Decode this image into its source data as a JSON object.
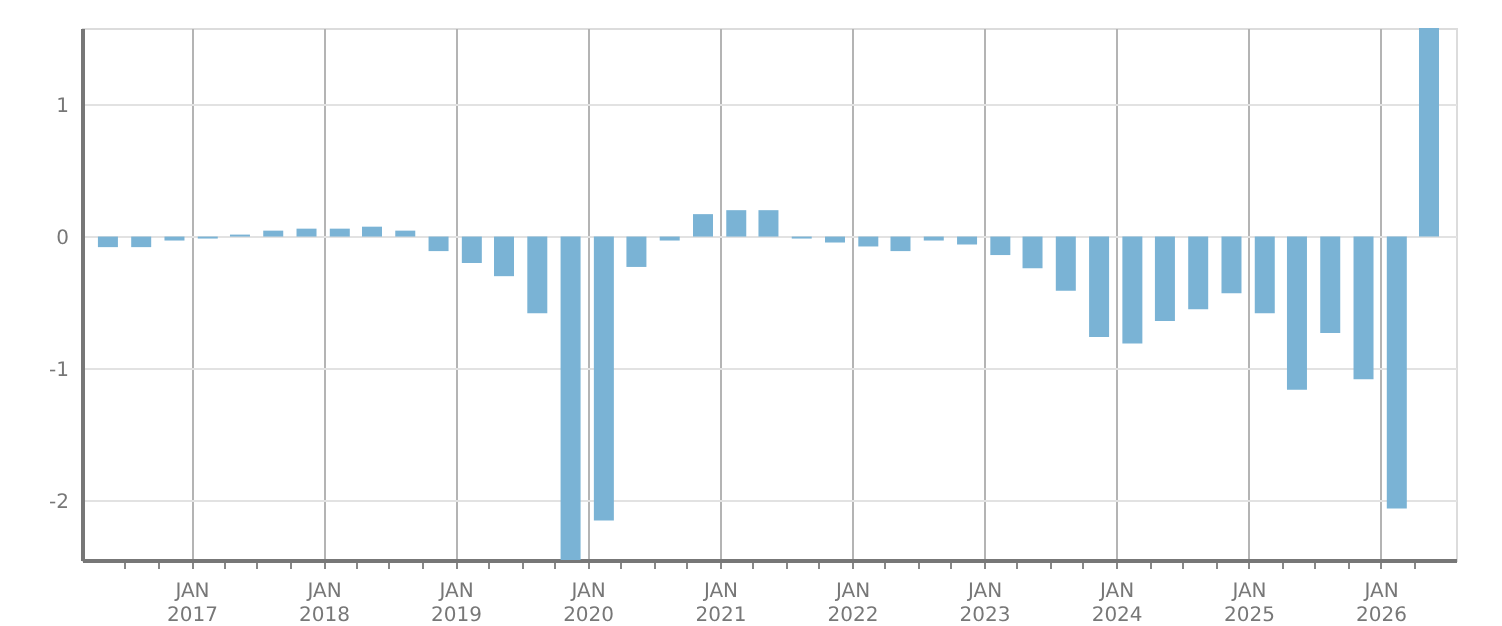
{
  "chart_data": {
    "type": "bar",
    "color": "#7ab3d5",
    "grid": true,
    "x": [
      "2016-05-15",
      "2016-08-15",
      "2016-11-15",
      "2017-02-15",
      "2017-05-15",
      "2017-08-15",
      "2017-11-15",
      "2018-02-15",
      "2018-05-15",
      "2018-08-15",
      "2018-11-15",
      "2019-02-15",
      "2019-05-15",
      "2019-08-15",
      "2019-11-15",
      "2020-02-15",
      "2020-05-15",
      "2020-08-15",
      "2020-11-15",
      "2021-02-15",
      "2021-05-15",
      "2021-08-15",
      "2021-11-15",
      "2022-02-15",
      "2022-05-15",
      "2022-08-15",
      "2022-11-15",
      "2023-02-15",
      "2023-05-15",
      "2023-08-15",
      "2023-11-15",
      "2024-02-15",
      "2024-05-15",
      "2024-08-15",
      "2024-11-15",
      "2025-02-15",
      "2025-05-15",
      "2025-08-15",
      "2025-11-15",
      "2026-02-15",
      "2026-05-15"
    ],
    "values": [
      -0.08,
      -0.08,
      -0.03,
      -0.015,
      0.015,
      0.045,
      0.06,
      0.06,
      0.075,
      0.045,
      -0.11,
      -0.2,
      -0.3,
      -0.58,
      -2.45,
      -2.15,
      -0.23,
      -0.03,
      0.17,
      0.2,
      0.2,
      -0.015,
      -0.045,
      -0.075,
      -0.11,
      -0.03,
      -0.06,
      -0.14,
      -0.24,
      -0.41,
      -0.76,
      -0.81,
      -0.64,
      -0.55,
      -0.43,
      -0.58,
      -1.16,
      -0.73,
      -1.08,
      -2.06,
      1.58
    ],
    "xlim": [
      "2016-04-01",
      "2026-07-01"
    ],
    "xticks": [
      {
        "value": "2016-07-01",
        "label": null
      },
      {
        "value": "2016-10-01",
        "label": null
      },
      {
        "value": "2017-01-01",
        "label": "JAN\n2017"
      },
      {
        "value": "2017-04-01",
        "label": null
      },
      {
        "value": "2017-07-01",
        "label": null
      },
      {
        "value": "2017-10-01",
        "label": null
      },
      {
        "value": "2018-01-01",
        "label": "JAN\n2018"
      },
      {
        "value": "2018-04-01",
        "label": null
      },
      {
        "value": "2018-07-01",
        "label": null
      },
      {
        "value": "2018-10-01",
        "label": null
      },
      {
        "value": "2019-01-01",
        "label": "JAN\n2019"
      },
      {
        "value": "2019-04-01",
        "label": null
      },
      {
        "value": "2019-07-01",
        "label": null
      },
      {
        "value": "2019-10-01",
        "label": null
      },
      {
        "value": "2020-01-01",
        "label": "JAN\n2020"
      },
      {
        "value": "2020-04-01",
        "label": null
      },
      {
        "value": "2020-07-01",
        "label": null
      },
      {
        "value": "2020-10-01",
        "label": null
      },
      {
        "value": "2021-01-01",
        "label": "JAN\n2021"
      },
      {
        "value": "2021-04-01",
        "label": null
      },
      {
        "value": "2021-07-01",
        "label": null
      },
      {
        "value": "2021-10-01",
        "label": null
      },
      {
        "value": "2022-01-01",
        "label": "JAN\n2022"
      },
      {
        "value": "2022-04-01",
        "label": null
      },
      {
        "value": "2022-07-01",
        "label": null
      },
      {
        "value": "2022-10-01",
        "label": null
      },
      {
        "value": "2023-01-01",
        "label": "JAN\n2023"
      },
      {
        "value": "2023-04-01",
        "label": null
      },
      {
        "value": "2023-07-01",
        "label": null
      },
      {
        "value": "2023-10-01",
        "label": null
      },
      {
        "value": "2024-01-01",
        "label": "JAN\n2024"
      },
      {
        "value": "2024-04-01",
        "label": null
      },
      {
        "value": "2024-07-01",
        "label": null
      },
      {
        "value": "2024-10-01",
        "label": null
      },
      {
        "value": "2025-01-01",
        "label": "JAN\n2025"
      },
      {
        "value": "2025-04-01",
        "label": null
      },
      {
        "value": "2025-07-01",
        "label": null
      },
      {
        "value": "2025-10-01",
        "label": null
      },
      {
        "value": "2026-01-01",
        "label": "JAN\n2026"
      },
      {
        "value": "2026-04-01",
        "label": null
      }
    ],
    "ylim": [
      -2.45,
      1.58
    ],
    "yticks": [
      -2,
      -1,
      0,
      1
    ]
  }
}
